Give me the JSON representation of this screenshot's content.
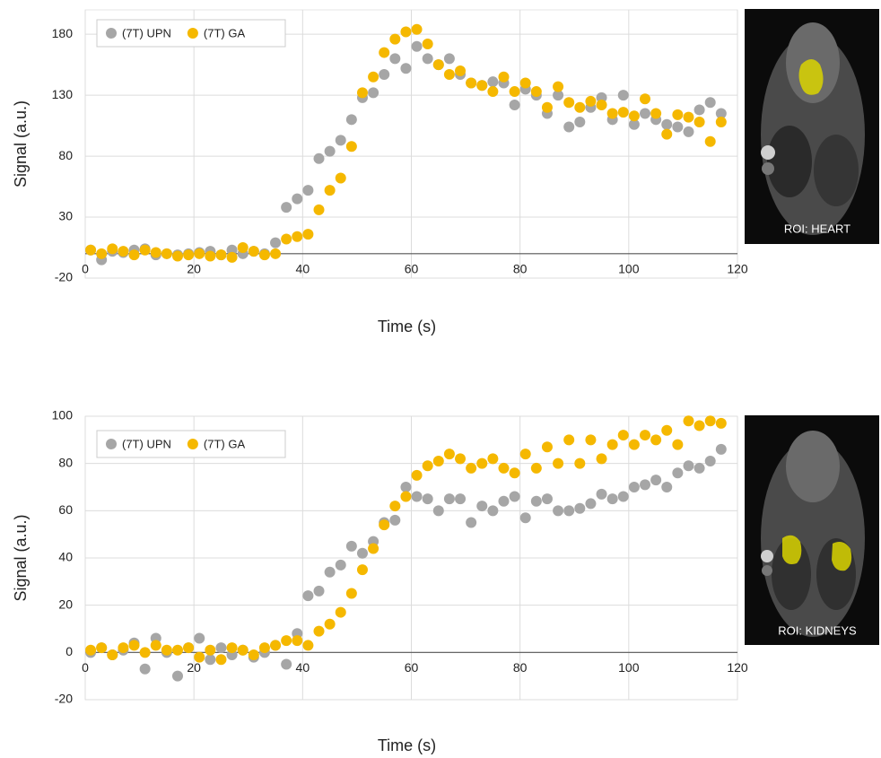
{
  "chart_data": [
    {
      "type": "scatter",
      "ylabel": "Signal (a.u.)",
      "xlabel": "Time (s)",
      "annotation": "ROI: HEART",
      "xlim": [
        0,
        120
      ],
      "xticks": [
        0,
        20,
        40,
        60,
        80,
        100,
        120
      ],
      "ylim": [
        -20,
        200
      ],
      "yticks": [
        -20,
        30,
        80,
        130,
        180
      ],
      "grid": true,
      "legend": "upper-left",
      "x": [
        1,
        3,
        5,
        7,
        9,
        11,
        13,
        15,
        17,
        19,
        21,
        23,
        25,
        27,
        29,
        31,
        33,
        35,
        37,
        39,
        41,
        43,
        45,
        47,
        49,
        51,
        53,
        55,
        57,
        59,
        61,
        63,
        65,
        67,
        69,
        71,
        73,
        75,
        77,
        79,
        81,
        83,
        85,
        87,
        89,
        91,
        93,
        95,
        97,
        99,
        101,
        103,
        105,
        107,
        109,
        111,
        113,
        115,
        117
      ],
      "series": [
        {
          "name": "(7T) UPN",
          "color": "#a6a6a6",
          "values": [
            3,
            -5,
            2,
            1,
            3,
            4,
            -1,
            0,
            -1,
            0,
            1,
            2,
            -1,
            3,
            0,
            2,
            0,
            9,
            38,
            45,
            52,
            78,
            84,
            93,
            110,
            128,
            132,
            147,
            160,
            152,
            170,
            160,
            155,
            160,
            147,
            140,
            138,
            141,
            140,
            122,
            135,
            130,
            115,
            130,
            104,
            108,
            120,
            128,
            110,
            130,
            106,
            115,
            110,
            106,
            104,
            100,
            118,
            124,
            115
          ]
        },
        {
          "name": "(7T) GA",
          "color": "#f5b800",
          "values": [
            3,
            0,
            4,
            2,
            -1,
            3,
            1,
            0,
            -2,
            -1,
            0,
            -2,
            -1,
            -3,
            5,
            2,
            -1,
            0,
            12,
            14,
            16,
            36,
            52,
            62,
            88,
            132,
            145,
            165,
            176,
            182,
            184,
            172,
            155,
            147,
            150,
            140,
            138,
            133,
            145,
            133,
            140,
            133,
            120,
            137,
            124,
            120,
            125,
            122,
            115,
            116,
            113,
            127,
            115,
            98,
            114,
            112,
            108,
            92,
            108
          ]
        }
      ]
    },
    {
      "type": "scatter",
      "ylabel": "Signal (a.u.)",
      "xlabel": "Time (s)",
      "annotation": "ROI: KIDNEYS",
      "xlim": [
        0,
        120
      ],
      "xticks": [
        0,
        20,
        40,
        60,
        80,
        100,
        120
      ],
      "ylim": [
        -20,
        100
      ],
      "yticks": [
        -20,
        0,
        20,
        40,
        60,
        80,
        100
      ],
      "grid": true,
      "legend": "upper-left",
      "x": [
        1,
        3,
        5,
        7,
        9,
        11,
        13,
        15,
        17,
        19,
        21,
        23,
        25,
        27,
        29,
        31,
        33,
        35,
        37,
        39,
        41,
        43,
        45,
        47,
        49,
        51,
        53,
        55,
        57,
        59,
        61,
        63,
        65,
        67,
        69,
        71,
        73,
        75,
        77,
        79,
        81,
        83,
        85,
        87,
        89,
        91,
        93,
        95,
        97,
        99,
        101,
        103,
        105,
        107,
        109,
        111,
        113,
        115,
        117
      ],
      "series": [
        {
          "name": "(7T) UPN",
          "color": "#a6a6a6",
          "values": [
            0,
            2,
            -1,
            1,
            4,
            -7,
            6,
            0,
            -10,
            2,
            6,
            -3,
            2,
            -1,
            1,
            -2,
            0,
            3,
            -5,
            8,
            24,
            26,
            34,
            37,
            45,
            42,
            47,
            55,
            56,
            70,
            66,
            65,
            60,
            65,
            65,
            55,
            62,
            60,
            64,
            66,
            57,
            64,
            65,
            60,
            60,
            61,
            63,
            67,
            65,
            66,
            70,
            71,
            73,
            70,
            76,
            79,
            78,
            81,
            86
          ]
        },
        {
          "name": "(7T) GA",
          "color": "#f5b800",
          "values": [
            1,
            2,
            -1,
            2,
            3,
            0,
            3,
            1,
            1,
            2,
            -2,
            1,
            -3,
            2,
            1,
            -1,
            2,
            3,
            5,
            5,
            3,
            9,
            12,
            17,
            25,
            35,
            44,
            54,
            62,
            66,
            75,
            79,
            81,
            84,
            82,
            78,
            80,
            82,
            78,
            76,
            84,
            78,
            87,
            80,
            90,
            80,
            90,
            82,
            88,
            92,
            88,
            92,
            90,
            94,
            88,
            98,
            96,
            98,
            97
          ]
        }
      ]
    }
  ]
}
